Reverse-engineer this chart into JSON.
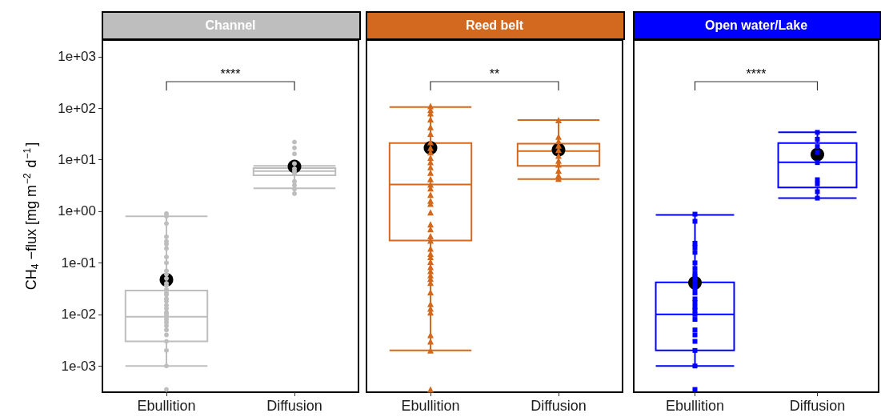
{
  "chart_data": [
    {
      "type": "box",
      "title": "Channel",
      "ylabel": "CH$_{4}$ −flux [mg m$^{−2}$ d$^{−1}$]",
      "categories": [
        "Ebullition",
        "Diffusion"
      ],
      "log": true,
      "ylim": [
        0.00031,
        2100
      ],
      "yticks": [
        {
          "value": 0.001,
          "label": "1e-03"
        },
        {
          "value": 0.01,
          "label": "1e-02"
        },
        {
          "value": 0.1,
          "label": "1e-01"
        },
        {
          "value": 1,
          "label": "1e+00"
        },
        {
          "value": 10,
          "label": "1e+01"
        },
        {
          "value": 100,
          "label": "1e+02"
        },
        {
          "value": 1000,
          "label": "1e+03"
        }
      ],
      "annotations": [
        "****"
      ],
      "series": [
        {
          "type": "box",
          "color": "#bebebe",
          "boxes": [
            {
              "low": 0.001,
              "q1": 0.003,
              "median": 0.009,
              "q3": 0.029,
              "high": 0.8
            },
            {
              "low": 2.8,
              "q1": 5,
              "median": 6,
              "q3": 6.9,
              "high": 7.6
            }
          ]
        },
        {
          "type": "scatter",
          "color": "#000000",
          "marker": "circle",
          "x": [
            "Ebullition",
            "Diffusion"
          ],
          "values": [
            0.047,
            7.4
          ]
        },
        {
          "type": "scatter",
          "color": "#bebebe",
          "marker": "circle",
          "x": [
            "Ebullition",
            "Ebullition",
            "Ebullition",
            "Ebullition",
            "Ebullition",
            "Ebullition",
            "Ebullition",
            "Ebullition",
            "Ebullition",
            "Ebullition",
            "Ebullition",
            "Ebullition",
            "Ebullition",
            "Ebullition",
            "Ebullition",
            "Ebullition",
            "Ebullition",
            "Ebullition",
            "Ebullition",
            "Ebullition",
            "Ebullition",
            "Ebullition",
            "Ebullition",
            "Ebullition",
            "Ebullition",
            "Ebullition",
            "Ebullition",
            "Ebullition",
            "Ebullition",
            "Ebullition",
            "Ebullition",
            "Ebullition",
            "Ebullition"
          ],
          "values": [
            0.9,
            0.8,
            0.58,
            0.32,
            0.26,
            0.23,
            0.19,
            0.13,
            0.1,
            0.07,
            0.06,
            0.05,
            0.04,
            0.036,
            0.03,
            0.026,
            0.024,
            0.02,
            0.018,
            0.015,
            0.013,
            0.011,
            0.01,
            0.009,
            0.008,
            0.007,
            0.006,
            0.005,
            0.004,
            0.003,
            0.002,
            0.001,
            0.00035
          ]
        },
        {
          "type": "scatter",
          "color": "#bebebe",
          "marker": "circle",
          "x": [
            "Diffusion",
            "Diffusion",
            "Diffusion",
            "Diffusion",
            "Diffusion",
            "Diffusion",
            "Diffusion",
            "Diffusion",
            "Diffusion",
            "Diffusion",
            "Diffusion"
          ],
          "values": [
            22,
            17,
            13,
            8.4,
            6.7,
            6,
            5.4,
            3.8,
            3.2,
            2.7,
            2.2
          ]
        }
      ]
    },
    {
      "type": "box",
      "title": "Reed belt",
      "categories": [
        "Ebullition",
        "Diffusion"
      ],
      "log": true,
      "tick_labels": "x",
      "ylim": [
        0.00031,
        2100
      ],
      "annotations": [
        "**"
      ],
      "series": [
        {
          "type": "box",
          "color": "#d2691e",
          "boxes": [
            {
              "low": 0.002,
              "q1": 0.27,
              "median": 3.3,
              "q3": 21,
              "high": 105
            },
            {
              "low": 4.2,
              "q1": 7.6,
              "median": 14.7,
              "q3": 20.5,
              "high": 59
            }
          ]
        },
        {
          "type": "scatter",
          "color": "#000000",
          "marker": "circle",
          "x": [
            "Ebullition",
            "Diffusion"
          ],
          "values": [
            17,
            15.6
          ]
        },
        {
          "type": "scatter",
          "color": "#d2691e",
          "marker": "triangle",
          "x": [
            "Ebullition",
            "Ebullition",
            "Ebullition",
            "Ebullition",
            "Ebullition",
            "Ebullition",
            "Ebullition",
            "Ebullition",
            "Ebullition",
            "Ebullition",
            "Ebullition",
            "Ebullition",
            "Ebullition",
            "Ebullition",
            "Ebullition",
            "Ebullition",
            "Ebullition",
            "Ebullition",
            "Ebullition",
            "Ebullition",
            "Ebullition",
            "Ebullition",
            "Ebullition",
            "Ebullition",
            "Ebullition",
            "Ebullition",
            "Ebullition",
            "Ebullition",
            "Ebullition",
            "Ebullition",
            "Ebullition",
            "Ebullition",
            "Ebullition",
            "Ebullition",
            "Ebullition",
            "Ebullition",
            "Ebullition",
            "Ebullition",
            "Ebullition",
            "Ebullition",
            "Ebullition"
          ],
          "values": [
            110,
            93,
            80,
            61,
            43,
            32,
            22,
            17,
            14,
            11,
            9,
            7.2,
            5.6,
            4.2,
            3.3,
            2.8,
            2.1,
            1.6,
            1.4,
            0.96,
            0.56,
            0.45,
            0.33,
            0.27,
            0.19,
            0.15,
            0.13,
            0.105,
            0.083,
            0.07,
            0.058,
            0.049,
            0.041,
            0.027,
            0.016,
            0.013,
            0.011,
            0.004,
            0.003,
            0.002,
            0.00035
          ]
        },
        {
          "type": "scatter",
          "color": "#d2691e",
          "marker": "triangle",
          "x": [
            "Diffusion",
            "Diffusion",
            "Diffusion",
            "Diffusion",
            "Diffusion",
            "Diffusion",
            "Diffusion",
            "Diffusion",
            "Diffusion",
            "Diffusion",
            "Diffusion"
          ],
          "values": [
            59,
            28,
            23,
            19,
            15.5,
            12,
            9.6,
            8.1,
            6.2,
            5,
            4.3
          ]
        }
      ]
    },
    {
      "type": "box",
      "title": "Open water/Lake",
      "categories": [
        "Ebullition",
        "Diffusion"
      ],
      "log": true,
      "tick_labels": "x",
      "ylim": [
        0.00031,
        2100
      ],
      "annotations": [
        "****"
      ],
      "series": [
        {
          "type": "box",
          "color": "#0000ff",
          "boxes": [
            {
              "low": 0.001,
              "q1": 0.002,
              "median": 0.01,
              "q3": 0.042,
              "high": 0.85
            },
            {
              "low": 1.8,
              "q1": 2.9,
              "median": 8.9,
              "q3": 21,
              "high": 34
            }
          ]
        },
        {
          "type": "scatter",
          "color": "#000000",
          "marker": "circle",
          "x": [
            "Ebullition",
            "Diffusion"
          ],
          "values": [
            0.041,
            12.6
          ]
        },
        {
          "type": "scatter",
          "color": "#0000ff",
          "marker": "square",
          "x": [
            "Ebullition",
            "Ebullition",
            "Ebullition",
            "Ebullition",
            "Ebullition",
            "Ebullition",
            "Ebullition",
            "Ebullition",
            "Ebullition",
            "Ebullition",
            "Ebullition",
            "Ebullition",
            "Ebullition",
            "Ebullition",
            "Ebullition",
            "Ebullition",
            "Ebullition",
            "Ebullition",
            "Ebullition",
            "Ebullition",
            "Ebullition",
            "Ebullition",
            "Ebullition",
            "Ebullition",
            "Ebullition"
          ],
          "values": [
            0.88,
            0.64,
            0.24,
            0.2,
            0.16,
            0.1,
            0.078,
            0.063,
            0.054,
            0.046,
            0.037,
            0.032,
            0.026,
            0.02,
            0.017,
            0.014,
            0.012,
            0.01,
            0.008,
            0.005,
            0.004,
            0.003,
            0.002,
            0.001,
            0.00035
          ]
        },
        {
          "type": "scatter",
          "color": "#0000ff",
          "marker": "square",
          "x": [
            "Diffusion",
            "Diffusion",
            "Diffusion",
            "Diffusion",
            "Diffusion",
            "Diffusion",
            "Diffusion",
            "Diffusion",
            "Diffusion"
          ],
          "values": [
            34,
            25,
            18,
            14,
            8.8,
            4.1,
            3.4,
            2.4,
            1.8
          ]
        }
      ]
    }
  ]
}
